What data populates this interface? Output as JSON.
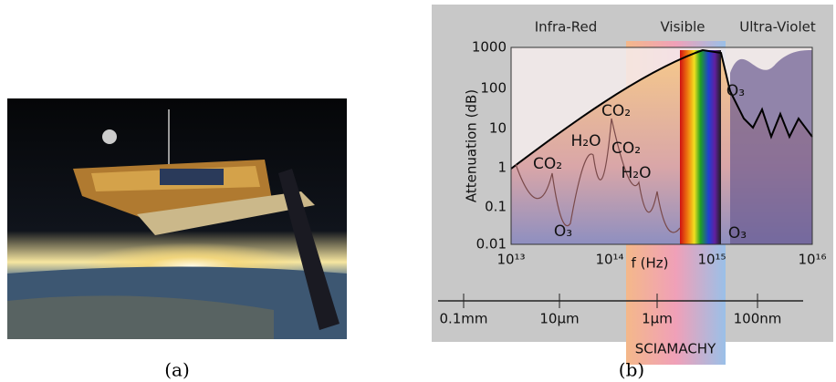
{
  "panels": [
    {
      "caption": "(a)"
    },
    {
      "caption": "(b)",
      "regions": [
        "Infra-Red",
        "Visible",
        "Ultra-Violet"
      ],
      "y_axis_label": "Attenuation (dB)",
      "y_ticks": [
        "1000",
        "100",
        "10",
        "1",
        "0.1",
        "0.01"
      ],
      "x_ticks": [
        "10¹³",
        "10¹⁴",
        "10¹⁵",
        "10¹⁶"
      ],
      "x_axis_label": "f (Hz)",
      "wavelength_ticks": [
        "0.1mm",
        "10μm",
        "1μm",
        "100nm"
      ],
      "annotations": [
        "CO₂",
        "H₂O",
        "CO₂",
        "CO₂",
        "H₂O",
        "O₃",
        "O₃",
        "O₃"
      ],
      "instrument": "SCIAMACHY"
    }
  ]
}
